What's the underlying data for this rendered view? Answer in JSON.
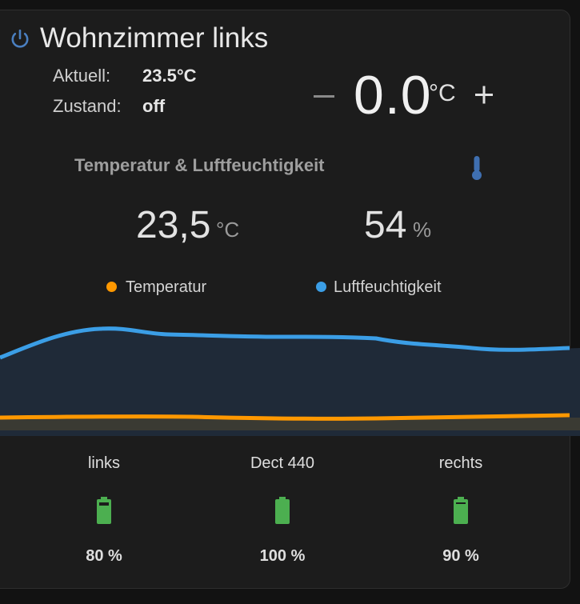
{
  "thermostat": {
    "title": "Wohnzimmer links",
    "current_label": "Aktuell:",
    "current_value": "23.5°C",
    "state_label": "Zustand:",
    "state_value": "off",
    "setpoint": "0.0",
    "setpoint_unit": "°C",
    "icon": "power-icon",
    "accent_color": "#4a8bd6"
  },
  "sensor": {
    "title": "Temperatur & Luftfeuchtigkeit",
    "icon": "thermometer-icon",
    "temperature_value": "23,5",
    "temperature_unit": "°C",
    "humidity_value": "54",
    "humidity_unit": "%",
    "legend": [
      {
        "label": "Temperatur",
        "color": "#ff9800"
      },
      {
        "label": "Luftfeuchtigkeit",
        "color": "#3b9ee6"
      }
    ]
  },
  "batteries": [
    {
      "name": "links",
      "percent": "80 %",
      "level": 0.8,
      "color": "#4caf50"
    },
    {
      "name": "Dect 440",
      "percent": "100 %",
      "level": 1.0,
      "color": "#4caf50"
    },
    {
      "name": "rechts",
      "percent": "90 %",
      "level": 0.9,
      "color": "#4caf50"
    }
  ]
}
